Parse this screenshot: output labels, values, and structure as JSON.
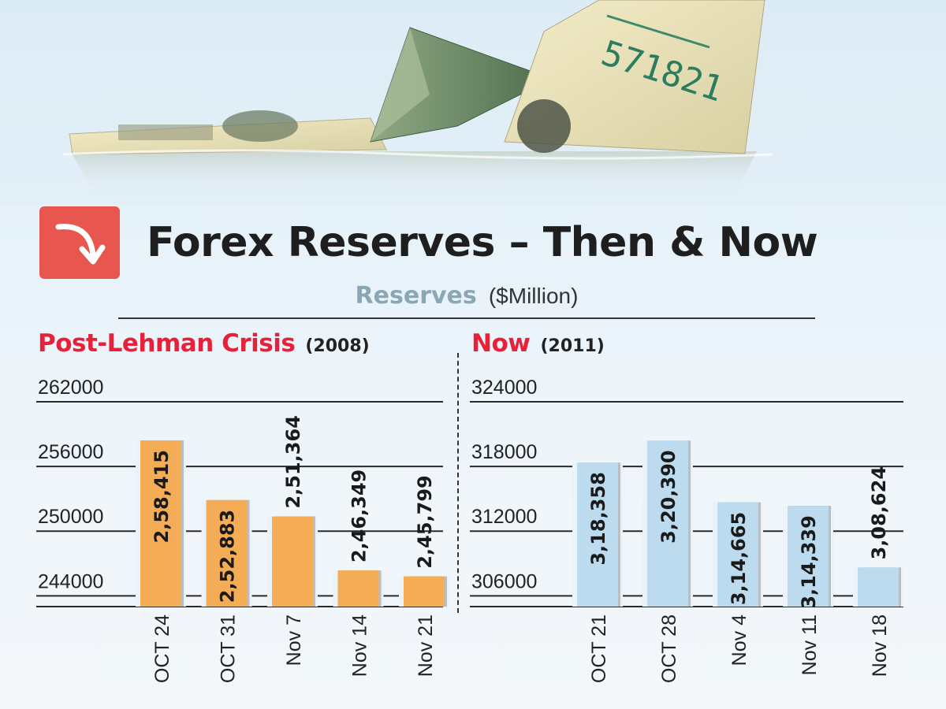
{
  "title": "Forex Reserves – Then & Now",
  "subtitle": "Reserves",
  "unit": "($Million)",
  "colors": {
    "accent": "#e8574f",
    "heading_red": "#e8213a",
    "bar_orange": "#f5ac56",
    "bar_blue": "#bcdbee"
  },
  "icons": {
    "title_badge": "curved-down-arrow-icon"
  },
  "chart_data": [
    {
      "type": "bar",
      "heading": "Post-Lehman Crisis",
      "year": "(2008)",
      "categories": [
        "OCT 24",
        "OCT 31",
        "Nov 7",
        "Nov 14",
        "Nov 21"
      ],
      "values": [
        258415,
        252883,
        251364,
        246349,
        245799
      ],
      "labels": [
        "2,58,415",
        "2,52,883",
        "2,51,364",
        "2,46,349",
        "2,45,799"
      ],
      "yticks": [
        "262000",
        "256000",
        "250000",
        "244000"
      ],
      "ylim": [
        243000,
        262000
      ],
      "grid": true
    },
    {
      "type": "bar",
      "heading": "Now",
      "year": "(2011)",
      "categories": [
        "OCT 21",
        "OCT 28",
        "Nov 4",
        "Nov 11",
        "Nov 18"
      ],
      "values": [
        318358,
        320390,
        314665,
        314339,
        308624
      ],
      "labels": [
        "3,18,358",
        "3,20,390",
        "3,14,665",
        "3,14,339",
        "3,08,624"
      ],
      "yticks": [
        "324000",
        "318000",
        "312000",
        "306000"
      ],
      "ylim": [
        305000,
        324000
      ],
      "grid": true
    }
  ]
}
